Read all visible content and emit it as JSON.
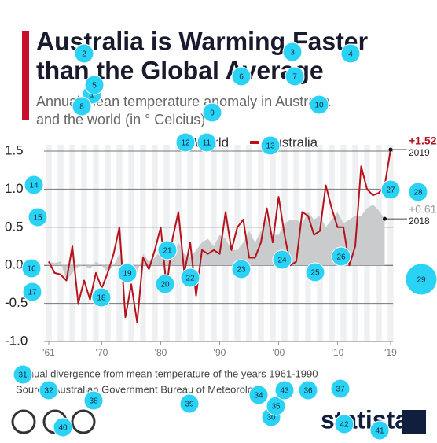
{
  "chart_data": {
    "type": "area_line",
    "title": [
      "Australia is Warming Faster",
      "than the Global Average"
    ],
    "subtitle": [
      "Annual mean temperature anomaly in Australia",
      "and the world (in ° Celcius)"
    ],
    "x": [
      1961,
      1962,
      1963,
      1964,
      1965,
      1966,
      1967,
      1968,
      1969,
      1970,
      1971,
      1972,
      1973,
      1974,
      1975,
      1976,
      1977,
      1978,
      1979,
      1980,
      1981,
      1982,
      1983,
      1984,
      1985,
      1986,
      1987,
      1988,
      1989,
      1990,
      1991,
      1992,
      1993,
      1994,
      1995,
      1996,
      1997,
      1998,
      1999,
      2000,
      2001,
      2002,
      2003,
      2004,
      2005,
      2006,
      2007,
      2008,
      2009,
      2010,
      2011,
      2012,
      2013,
      2014,
      2015,
      2016,
      2017,
      2018,
      2019
    ],
    "series": [
      {
        "name": "World",
        "color": "#c9cbcd",
        "values": [
          0.05,
          0.03,
          0.05,
          -0.2,
          -0.1,
          -0.02,
          0.0,
          -0.05,
          0.05,
          0.0,
          -0.1,
          0.0,
          0.15,
          -0.08,
          -0.02,
          -0.1,
          0.15,
          0.05,
          0.1,
          0.2,
          0.25,
          0.1,
          0.3,
          0.15,
          0.1,
          0.2,
          0.3,
          0.35,
          0.25,
          0.4,
          0.35,
          0.2,
          0.2,
          0.3,
          0.45,
          0.3,
          0.45,
          0.6,
          0.4,
          0.4,
          0.55,
          0.6,
          0.6,
          0.55,
          0.7,
          0.6,
          0.65,
          0.5,
          0.6,
          0.7,
          0.55,
          0.6,
          0.65,
          0.65,
          0.75,
          0.8,
          0.72,
          0.61,
          null
        ],
        "value_labels": [
          null,
          null,
          null,
          null,
          null,
          null,
          null,
          null,
          null,
          null,
          null,
          null,
          null,
          null,
          null,
          null,
          null,
          null,
          null,
          null,
          null,
          null,
          null,
          null,
          null,
          null,
          null,
          null,
          null,
          null,
          null,
          null,
          null,
          null,
          null,
          null,
          null,
          null,
          null,
          null,
          null,
          null,
          null,
          null,
          null,
          null,
          null,
          null,
          null,
          null,
          null,
          null,
          null,
          null,
          null,
          null,
          null,
          "+0.61",
          null
        ]
      },
      {
        "name": "Australia",
        "color": "#b5121b",
        "values": [
          0.05,
          -0.1,
          -0.12,
          -0.2,
          0.25,
          -0.5,
          -0.2,
          -0.45,
          -0.1,
          -0.3,
          -0.1,
          0.15,
          0.5,
          -0.68,
          -0.25,
          -0.75,
          0.1,
          -0.05,
          0.2,
          0.5,
          -0.3,
          0.35,
          0.7,
          -0.1,
          0.3,
          -0.4,
          0.2,
          0.15,
          0.2,
          0.15,
          0.7,
          0.2,
          0.5,
          0.6,
          0.1,
          0.1,
          0.3,
          0.75,
          0.3,
          0.9,
          0.4,
          0.0,
          0.05,
          0.7,
          0.65,
          0.4,
          0.45,
          1.05,
          0.75,
          0.5,
          0.5,
          0.0,
          0.25,
          1.3,
          1.0,
          0.92,
          0.95,
          1.05,
          1.52
        ],
        "value_labels": [
          null,
          null,
          null,
          null,
          null,
          null,
          null,
          null,
          null,
          null,
          null,
          null,
          null,
          null,
          null,
          null,
          null,
          null,
          null,
          null,
          null,
          null,
          null,
          null,
          null,
          null,
          null,
          null,
          null,
          null,
          null,
          null,
          null,
          null,
          null,
          null,
          null,
          null,
          null,
          null,
          null,
          null,
          null,
          null,
          null,
          null,
          null,
          null,
          null,
          null,
          null,
          null,
          null,
          null,
          null,
          null,
          null,
          null,
          "+1.52"
        ]
      }
    ],
    "annotations": [
      "2019",
      "2018"
    ],
    "xlim": [
      1960,
      2020
    ],
    "xticks": [
      {
        "value": 1961,
        "label": "'61"
      },
      {
        "value": 1970,
        "label": "'70"
      },
      {
        "value": 1980,
        "label": "'80"
      },
      {
        "value": 1990,
        "label": "'90"
      },
      {
        "value": 2000,
        "label": "'00"
      },
      {
        "value": 2010,
        "label": "'10"
      },
      {
        "value": 2019,
        "label": "'19"
      }
    ],
    "ylim": [
      -1,
      1.5
    ],
    "yticks": [
      {
        "value": 1.5,
        "label": "1.5"
      },
      {
        "value": 1,
        "label": "1.0"
      },
      0.5,
      {
        "value": 0,
        "label": "0.0"
      },
      -0.5,
      {
        "value": -1,
        "label": "-1.0"
      }
    ],
    "grid": true,
    "footnote": "Annual divergence from mean temperature of the years 1961-1990",
    "source": "Source: Australian Government Bureau of Meteorology",
    "brand": "statista"
  },
  "markers": [
    "1",
    "2",
    "3",
    "4",
    "5",
    "6",
    "7",
    "8",
    "9",
    "10",
    "11",
    "12",
    "13",
    "14",
    "15",
    "16",
    "17",
    "18",
    "19",
    "20",
    "21",
    "22",
    "23",
    "24",
    "25",
    "26",
    "27",
    "28",
    "29",
    "30",
    "31",
    "32",
    "34",
    "35",
    "36",
    "37",
    "38",
    "39",
    "40",
    "41",
    "42",
    "43"
  ]
}
